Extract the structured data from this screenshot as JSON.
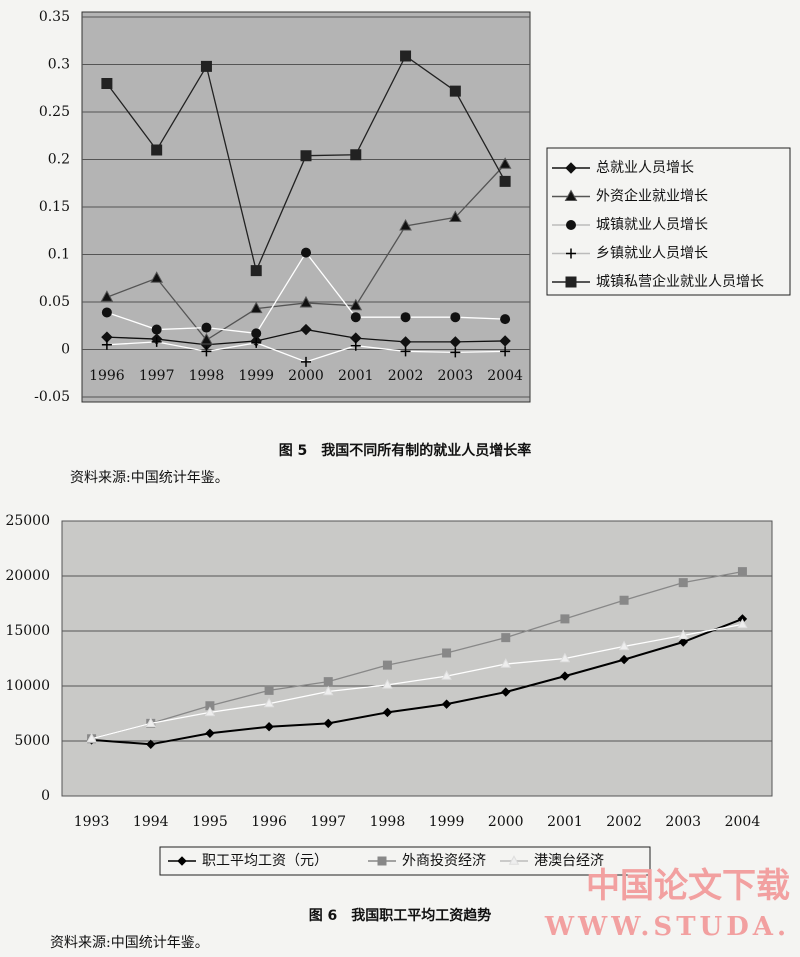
{
  "chart_data": [
    {
      "type": "line",
      "title": "图 5　我国不同所有制的就业人员增长率",
      "source": "资料来源:中国统计年鉴。",
      "categories": [
        "1996",
        "1997",
        "1998",
        "1999",
        "2000",
        "2001",
        "2002",
        "2003",
        "2004"
      ],
      "ylim": [
        -0.05,
        0.35
      ],
      "yticks": [
        -0.05,
        0,
        0.05,
        0.1,
        0.15,
        0.2,
        0.25,
        0.3,
        0.35
      ],
      "grid": true,
      "legend": "right",
      "series": [
        {
          "name": "总就业人员增长",
          "color": "#111111",
          "marker": "diamond",
          "values": [
            0.013,
            0.011,
            0.005,
            0.009,
            0.021,
            0.012,
            0.008,
            0.008,
            0.009
          ]
        },
        {
          "name": "外资企业就业增长",
          "color": "#555555",
          "marker": "triangle",
          "values": [
            0.055,
            0.075,
            0.01,
            0.043,
            0.049,
            0.046,
            0.13,
            0.139,
            0.195
          ]
        },
        {
          "name": "城镇就业人员增长",
          "color": "#ffffff",
          "marker": "circle",
          "values": [
            0.039,
            0.021,
            0.023,
            0.017,
            0.102,
            0.034,
            0.034,
            0.034,
            0.032
          ]
        },
        {
          "name": "乡镇就业人员增长",
          "color": "#ffffff",
          "marker": "plus",
          "values": [
            0.005,
            0.008,
            -0.002,
            0.007,
            -0.013,
            0.004,
            -0.002,
            -0.003,
            -0.002
          ]
        },
        {
          "name": "城镇私营企业就业人员增长",
          "color": "#222222",
          "marker": "square",
          "values": [
            0.28,
            0.21,
            0.298,
            0.083,
            0.204,
            0.205,
            0.309,
            0.272,
            0.177
          ]
        }
      ]
    },
    {
      "type": "line",
      "title": "图 6　我国职工平均工资趋势",
      "source": "资料来源:中国统计年鉴。",
      "categories": [
        "1993",
        "1994",
        "1995",
        "1996",
        "1997",
        "1998",
        "1999",
        "2000",
        "2001",
        "2002",
        "2003",
        "2004"
      ],
      "ylim": [
        0,
        25000
      ],
      "yticks": [
        0,
        5000,
        10000,
        15000,
        20000,
        25000
      ],
      "grid": true,
      "legend": "bottom",
      "series": [
        {
          "name": "职工平均工资（元）",
          "color": "#000000",
          "marker": "diamond",
          "values": [
            5100,
            4700,
            5700,
            6300,
            6600,
            7600,
            8350,
            9450,
            10900,
            12400,
            14000,
            16100
          ]
        },
        {
          "name": "外商投资经济",
          "color": "#888888",
          "marker": "square",
          "values": [
            5200,
            6600,
            8200,
            9600,
            10400,
            11900,
            13000,
            14400,
            16100,
            17800,
            19400,
            20400
          ]
        },
        {
          "name": "港澳台经济",
          "color": "#ffffff",
          "marker": "triangle",
          "values": [
            5200,
            6600,
            7600,
            8400,
            9500,
            10100,
            10900,
            12000,
            12500,
            13600,
            14600,
            15600
          ]
        }
      ]
    }
  ],
  "watermark": [
    "中国论文下载",
    "WWW.STUDA."
  ]
}
